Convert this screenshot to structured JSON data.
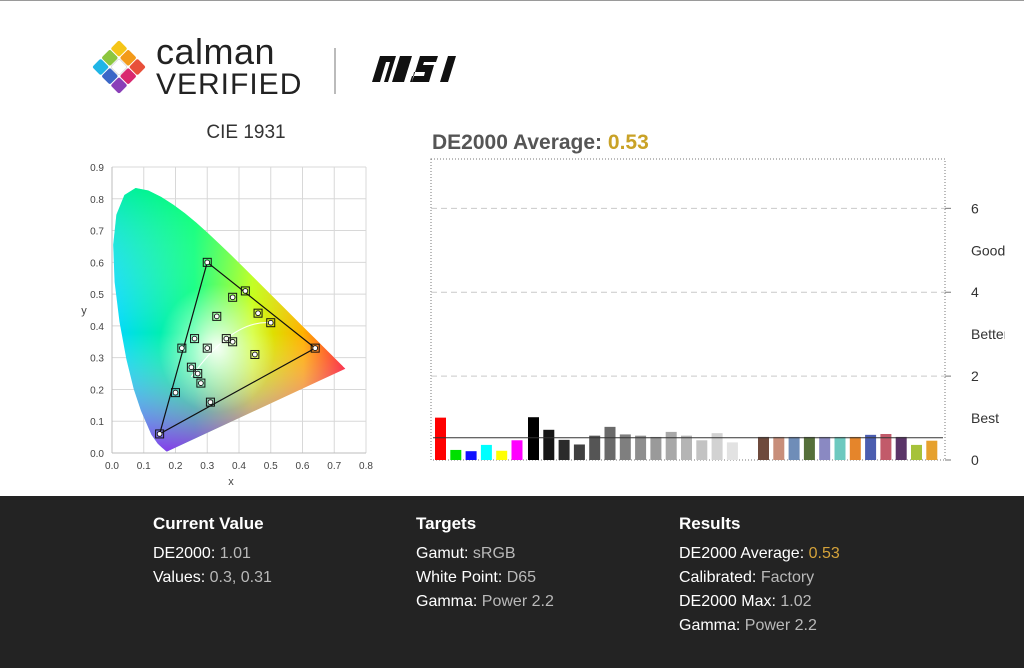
{
  "header": {
    "calman_word": "calman",
    "verified_word": "VERIFIED",
    "msi_word": "MSI"
  },
  "cie_title": "CIE 1931",
  "de_heading": {
    "label": "DE2000 Average:",
    "value": "0.53"
  },
  "chart_data": [
    {
      "type": "scatter",
      "title": "CIE 1931",
      "xlabel": "x",
      "ylabel": "y",
      "xlim": [
        0.0,
        0.8
      ],
      "ylim": [
        0.0,
        0.9
      ],
      "xticks": [
        "0.0",
        "0.1",
        "0.2",
        "0.3",
        "0.4",
        "0.5",
        "0.6",
        "0.7",
        "0.8"
      ],
      "yticks": [
        "0.0",
        "0.1",
        "0.2",
        "0.3",
        "0.4",
        "0.5",
        "0.6",
        "0.7",
        "0.8",
        "0.9"
      ],
      "grid": true,
      "gamut_triangle": [
        [
          0.64,
          0.33
        ],
        [
          0.3,
          0.6
        ],
        [
          0.15,
          0.06
        ]
      ],
      "measured_points": [
        [
          0.15,
          0.06
        ],
        [
          0.3,
          0.6
        ],
        [
          0.64,
          0.33
        ],
        [
          0.22,
          0.33
        ],
        [
          0.31,
          0.16
        ],
        [
          0.42,
          0.51
        ],
        [
          0.38,
          0.49
        ],
        [
          0.2,
          0.19
        ],
        [
          0.25,
          0.27
        ],
        [
          0.27,
          0.25
        ],
        [
          0.28,
          0.22
        ],
        [
          0.3,
          0.33
        ],
        [
          0.26,
          0.36
        ],
        [
          0.33,
          0.43
        ],
        [
          0.36,
          0.36
        ],
        [
          0.38,
          0.35
        ],
        [
          0.45,
          0.31
        ],
        [
          0.46,
          0.44
        ],
        [
          0.5,
          0.41
        ]
      ]
    },
    {
      "type": "bar",
      "title": "DE2000 Average: 0.53",
      "ylim": [
        0,
        7.2
      ],
      "yticks": [
        "0",
        "2",
        "4",
        "6"
      ],
      "y_zone_labels": [
        "Best",
        "Better",
        "Good"
      ],
      "reference_line": 0.53,
      "colors": [
        "#ff0000",
        "#00e000",
        "#1010ff",
        "#00ffff",
        "#ffff00",
        "#ff00ff",
        "#000000",
        "#161616",
        "#2b2b2b",
        "#404040",
        "#555555",
        "#6a6a6a",
        "#7f7f7f",
        "#8e8e8e",
        "#9a9a9a",
        "#a8a8a8",
        "#b5b5b5",
        "#c3c3c3",
        "#d2d2d2",
        "#e2e2e2",
        "#6e4a3c",
        "#c88e7a",
        "#6f8db8",
        "#56703a",
        "#8a89c2",
        "#6dc9bf",
        "#e5852b",
        "#4b5db0",
        "#c25a6a",
        "#5a3468",
        "#a6c23a",
        "#e6a12e"
      ],
      "values": [
        1.01,
        0.24,
        0.21,
        0.36,
        0.22,
        0.47,
        1.02,
        0.72,
        0.48,
        0.37,
        0.58,
        0.79,
        0.61,
        0.58,
        0.55,
        0.67,
        0.58,
        0.47,
        0.64,
        0.42,
        0.55,
        0.55,
        0.55,
        0.55,
        0.55,
        0.55,
        0.55,
        0.6,
        0.62,
        0.55,
        0.36,
        0.46
      ]
    }
  ],
  "footer": {
    "current": {
      "heading": "Current Value",
      "rows": [
        {
          "label": "DE2000:",
          "value": "1.01"
        },
        {
          "label": "Values:",
          "value": "0.3, 0.31"
        }
      ]
    },
    "targets": {
      "heading": "Targets",
      "rows": [
        {
          "label": "Gamut:",
          "value": "sRGB"
        },
        {
          "label": "White Point:",
          "value": "D65"
        },
        {
          "label": "Gamma:",
          "value": "Power 2.2"
        }
      ]
    },
    "results": {
      "heading": "Results",
      "rows": [
        {
          "label": "DE2000 Average:",
          "value": "0.53"
        },
        {
          "label": "Calibrated:",
          "value": "Factory"
        },
        {
          "label": "DE2000 Max:",
          "value": "1.02"
        },
        {
          "label": "Gamma:",
          "value": "Power 2.2"
        }
      ]
    }
  }
}
